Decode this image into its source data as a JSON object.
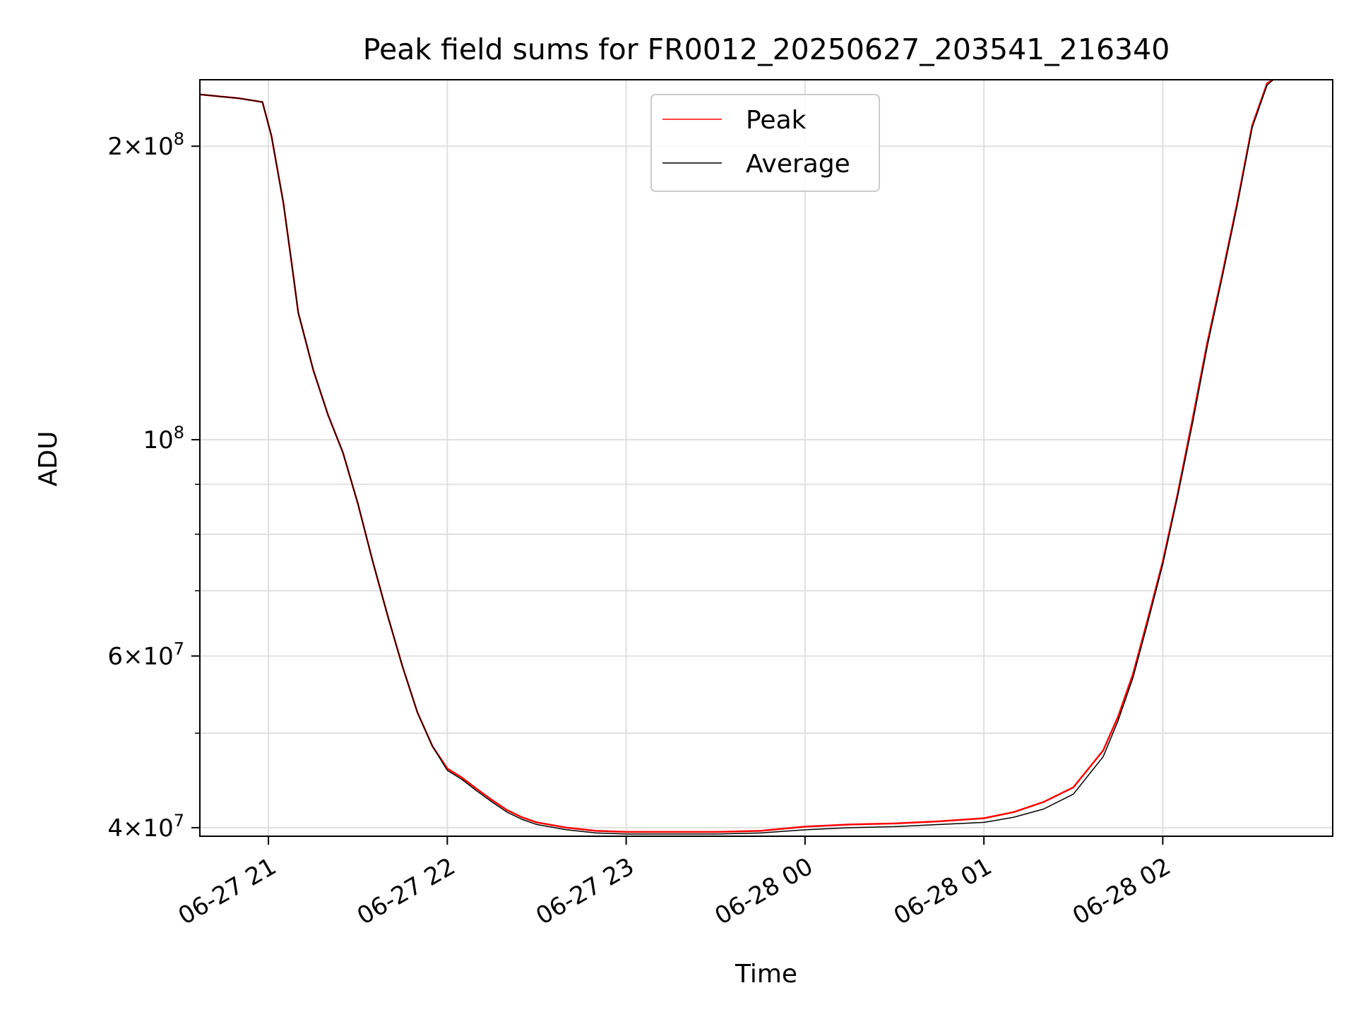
{
  "colors": {
    "peak": "#ff0000",
    "average": "#000000",
    "grid": "#e0e0e0",
    "axes": "#000000",
    "legend_border": "#cccccc"
  },
  "chart_data": {
    "type": "line",
    "title": "Peak field sums for FR0012_20250627_203541_216340",
    "xlabel": "Time",
    "ylabel": "ADU",
    "yscale": "log",
    "ylim": [
      39200000,
      234000000
    ],
    "xlim": [
      "2025-06-27 20:37",
      "2025-06-28 02:57"
    ],
    "grid": true,
    "legend_position": "top-center",
    "x_ticks": [
      {
        "value": "2025-06-27 21:00",
        "label": "06-27 21"
      },
      {
        "value": "2025-06-27 22:00",
        "label": "06-27 22"
      },
      {
        "value": "2025-06-27 23:00",
        "label": "06-27 23"
      },
      {
        "value": "2025-06-28 00:00",
        "label": "06-28 00"
      },
      {
        "value": "2025-06-28 01:00",
        "label": "06-28 01"
      },
      {
        "value": "2025-06-28 02:00",
        "label": "06-28 02"
      }
    ],
    "y_ticks": [
      {
        "value": 40000000,
        "base": "4×10",
        "exp": "7"
      },
      {
        "value": 60000000,
        "base": "6×10",
        "exp": "7"
      },
      {
        "value": 100000000,
        "base": "10",
        "exp": "8"
      },
      {
        "value": 200000000,
        "base": "2×10",
        "exp": "8"
      }
    ],
    "y_minor_ticks": [
      50000000,
      70000000,
      80000000,
      90000000
    ],
    "series": [
      {
        "name": "Peak",
        "color": "#ff0000",
        "x": [
          "2025-06-27 20:37",
          "2025-06-27 20:50",
          "2025-06-27 20:58",
          "2025-06-27 21:01",
          "2025-06-27 21:05",
          "2025-06-27 21:08",
          "2025-06-27 21:10",
          "2025-06-27 21:12",
          "2025-06-27 21:15",
          "2025-06-27 21:20",
          "2025-06-27 21:25",
          "2025-06-27 21:30",
          "2025-06-27 21:35",
          "2025-06-27 21:40",
          "2025-06-27 21:45",
          "2025-06-27 21:50",
          "2025-06-27 21:55",
          "2025-06-27 22:00",
          "2025-06-27 22:05",
          "2025-06-27 22:10",
          "2025-06-27 22:15",
          "2025-06-27 22:20",
          "2025-06-27 22:25",
          "2025-06-27 22:30",
          "2025-06-27 22:40",
          "2025-06-27 22:50",
          "2025-06-27 23:00",
          "2025-06-27 23:15",
          "2025-06-27 23:30",
          "2025-06-27 23:45",
          "2025-06-28 00:00",
          "2025-06-28 00:15",
          "2025-06-28 00:30",
          "2025-06-28 00:45",
          "2025-06-28 01:00",
          "2025-06-28 01:10",
          "2025-06-28 01:20",
          "2025-06-28 01:30",
          "2025-06-28 01:40",
          "2025-06-28 01:45",
          "2025-06-28 01:50",
          "2025-06-28 01:55",
          "2025-06-28 02:00",
          "2025-06-28 02:05",
          "2025-06-28 02:10",
          "2025-06-28 02:15",
          "2025-06-28 02:20",
          "2025-06-28 02:25",
          "2025-06-28 02:30",
          "2025-06-28 02:35",
          "2025-06-28 02:37"
        ],
        "values": [
          226000000,
          224000000,
          222000000,
          205000000,
          175000000,
          150000000,
          135000000,
          128000000,
          118000000,
          106000000,
          97000000,
          86000000,
          75000000,
          66000000,
          58500000,
          52500000,
          48500000,
          46000000,
          45000000,
          43800000,
          42700000,
          41700000,
          41000000,
          40500000,
          40000000,
          39700000,
          39600000,
          39600000,
          39600000,
          39700000,
          40100000,
          40300000,
          40400000,
          40600000,
          40900000,
          41500000,
          42500000,
          44000000,
          48000000,
          52000000,
          57500000,
          65500000,
          75000000,
          88000000,
          105000000,
          126000000,
          148000000,
          175000000,
          210000000,
          232000000,
          234000000
        ]
      },
      {
        "name": "Average",
        "color": "#000000",
        "x": [
          "2025-06-27 20:37",
          "2025-06-27 20:50",
          "2025-06-27 20:58",
          "2025-06-27 21:01",
          "2025-06-27 21:05",
          "2025-06-27 21:08",
          "2025-06-27 21:10",
          "2025-06-27 21:12",
          "2025-06-27 21:15",
          "2025-06-27 21:20",
          "2025-06-27 21:25",
          "2025-06-27 21:30",
          "2025-06-27 21:35",
          "2025-06-27 21:40",
          "2025-06-27 21:45",
          "2025-06-27 21:50",
          "2025-06-27 21:55",
          "2025-06-27 22:00",
          "2025-06-27 22:05",
          "2025-06-27 22:10",
          "2025-06-27 22:15",
          "2025-06-27 22:20",
          "2025-06-27 22:25",
          "2025-06-27 22:30",
          "2025-06-27 22:40",
          "2025-06-27 22:50",
          "2025-06-27 23:00",
          "2025-06-27 23:15",
          "2025-06-27 23:30",
          "2025-06-27 23:45",
          "2025-06-28 00:00",
          "2025-06-28 00:15",
          "2025-06-28 00:30",
          "2025-06-28 00:45",
          "2025-06-28 01:00",
          "2025-06-28 01:10",
          "2025-06-28 01:20",
          "2025-06-28 01:30",
          "2025-06-28 01:40",
          "2025-06-28 01:45",
          "2025-06-28 01:50",
          "2025-06-28 01:55",
          "2025-06-28 02:00",
          "2025-06-28 02:05",
          "2025-06-28 02:10",
          "2025-06-28 02:15",
          "2025-06-28 02:20",
          "2025-06-28 02:25",
          "2025-06-28 02:30",
          "2025-06-28 02:35",
          "2025-06-28 02:37"
        ],
        "values": [
          226000000,
          224000000,
          222000000,
          205000000,
          175000000,
          150000000,
          135000000,
          128000000,
          118000000,
          106000000,
          97000000,
          86000000,
          75000000,
          66000000,
          58500000,
          52500000,
          48500000,
          45800000,
          44800000,
          43600000,
          42500000,
          41500000,
          40800000,
          40300000,
          39800000,
          39500000,
          39400000,
          39400000,
          39400000,
          39500000,
          39800000,
          40000000,
          40100000,
          40300000,
          40500000,
          41000000,
          41800000,
          43300000,
          47300000,
          51500000,
          57000000,
          65000000,
          74500000,
          87500000,
          104000000,
          125000000,
          147000000,
          174000000,
          209000000,
          231000000,
          234000000
        ]
      }
    ]
  }
}
